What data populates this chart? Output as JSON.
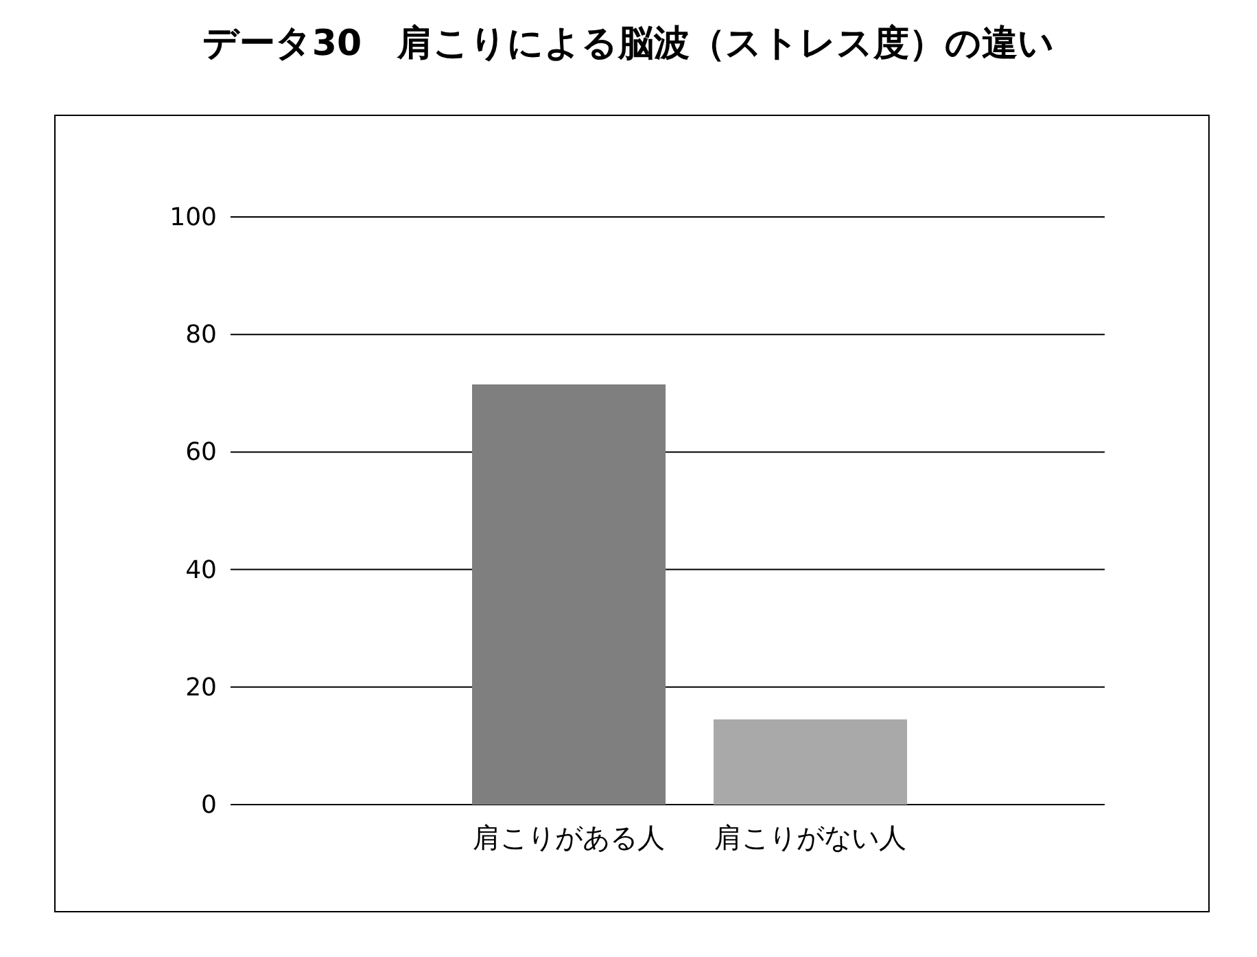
{
  "chart_data": {
    "type": "bar",
    "title": "データ30　肩こりによる脳波（ストレス度）の違い",
    "categories": [
      "肩こりがある人",
      "肩こりがない人"
    ],
    "values": [
      71.5,
      14.5
    ],
    "colors": [
      "#7f7f7f",
      "#a9a9a9"
    ],
    "ylim": [
      0,
      100
    ],
    "yticks": [
      0,
      20,
      40,
      60,
      80,
      100
    ],
    "grid": "y"
  }
}
